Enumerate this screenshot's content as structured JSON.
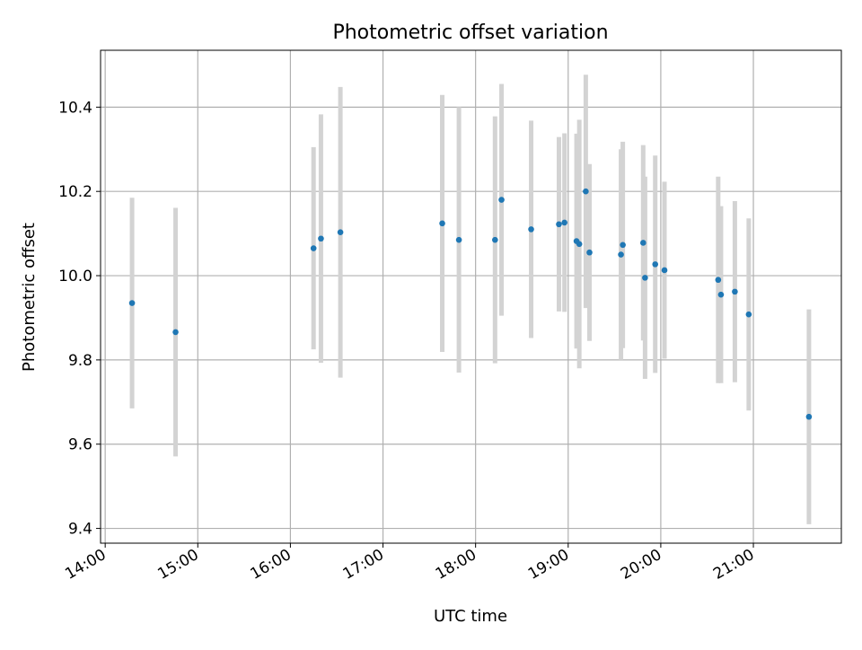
{
  "chart_data": {
    "type": "scatter",
    "title": "Photometric offset variation",
    "xlabel": "UTC time",
    "ylabel": "Photometric offset",
    "xlim": [
      13.95,
      21.95
    ],
    "ylim": [
      9.365,
      10.535
    ],
    "grid": true,
    "x_ticks": [
      {
        "value": 14,
        "label": "14:00"
      },
      {
        "value": 15,
        "label": "15:00"
      },
      {
        "value": 16,
        "label": "16:00"
      },
      {
        "value": 17,
        "label": "17:00"
      },
      {
        "value": 18,
        "label": "18:00"
      },
      {
        "value": 19,
        "label": "19:00"
      },
      {
        "value": 20,
        "label": "20:00"
      },
      {
        "value": 21,
        "label": "21:00"
      }
    ],
    "y_ticks": [
      {
        "value": 9.4,
        "label": "9.4"
      },
      {
        "value": 9.6,
        "label": "9.6"
      },
      {
        "value": 9.8,
        "label": "9.8"
      },
      {
        "value": 10.0,
        "label": "10.0"
      },
      {
        "value": 10.2,
        "label": "10.2"
      },
      {
        "value": 10.4,
        "label": "10.4"
      }
    ],
    "series": [
      {
        "name": "Photometric offset",
        "color": "#1f77b4",
        "errorbar_color": "#d3d3d3",
        "points": [
          {
            "x": 14.29,
            "y": 9.935,
            "yerr": 0.25
          },
          {
            "x": 14.76,
            "y": 9.866,
            "yerr": 0.295
          },
          {
            "x": 16.25,
            "y": 10.065,
            "yerr": 0.24
          },
          {
            "x": 16.33,
            "y": 10.088,
            "yerr": 0.295
          },
          {
            "x": 16.54,
            "y": 10.103,
            "yerr": 0.345
          },
          {
            "x": 17.64,
            "y": 10.124,
            "yerr": 0.305
          },
          {
            "x": 17.82,
            "y": 10.085,
            "yerr": 0.315
          },
          {
            "x": 18.21,
            "y": 10.085,
            "yerr": 0.293
          },
          {
            "x": 18.28,
            "y": 10.18,
            "yerr": 0.275
          },
          {
            "x": 18.6,
            "y": 10.11,
            "yerr": 0.258
          },
          {
            "x": 18.9,
            "y": 10.122,
            "yerr": 0.207
          },
          {
            "x": 18.96,
            "y": 10.126,
            "yerr": 0.212
          },
          {
            "x": 19.09,
            "y": 10.082,
            "yerr": 0.255
          },
          {
            "x": 19.12,
            "y": 10.075,
            "yerr": 0.295
          },
          {
            "x": 19.19,
            "y": 10.2,
            "yerr": 0.277
          },
          {
            "x": 19.23,
            "y": 10.055,
            "yerr": 0.21
          },
          {
            "x": 19.57,
            "y": 10.05,
            "yerr": 0.25
          },
          {
            "x": 19.59,
            "y": 10.073,
            "yerr": 0.245
          },
          {
            "x": 19.81,
            "y": 10.078,
            "yerr": 0.232
          },
          {
            "x": 19.83,
            "y": 9.995,
            "yerr": 0.24
          },
          {
            "x": 19.94,
            "y": 10.027,
            "yerr": 0.258
          },
          {
            "x": 20.04,
            "y": 10.013,
            "yerr": 0.21
          },
          {
            "x": 20.62,
            "y": 9.99,
            "yerr": 0.245
          },
          {
            "x": 20.65,
            "y": 9.955,
            "yerr": 0.21
          },
          {
            "x": 20.8,
            "y": 9.962,
            "yerr": 0.215
          },
          {
            "x": 20.95,
            "y": 9.908,
            "yerr": 0.228
          },
          {
            "x": 21.6,
            "y": 9.665,
            "yerr": 0.255
          }
        ]
      }
    ]
  }
}
